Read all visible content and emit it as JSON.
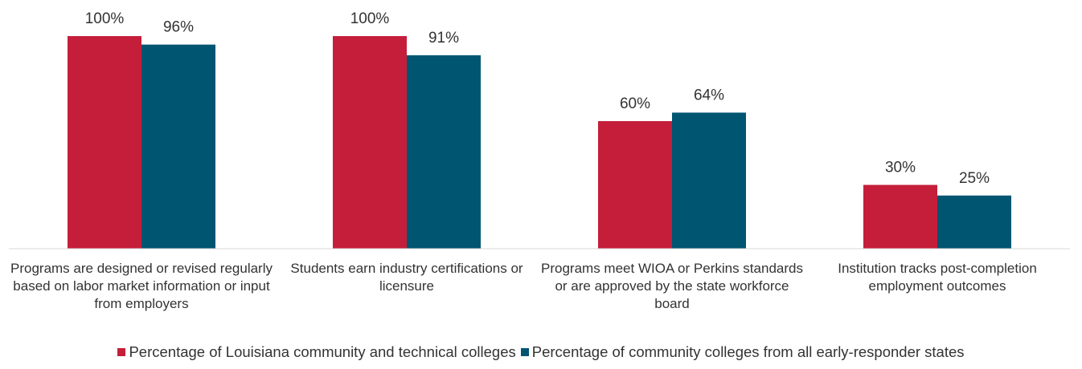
{
  "chart_data": {
    "type": "bar",
    "categories": [
      "Programs are designed or revised regularly based on labor market information or input from employers",
      "Students earn industry certifications or licensure",
      "Programs meet WIOA or Perkins standards or are approved by the state workforce board",
      "Institution tracks post-completion employment outcomes"
    ],
    "series": [
      {
        "name": "Percentage of Louisiana community and technical colleges",
        "color": "#c41e3a",
        "values": [
          100,
          100,
          60,
          30
        ],
        "value_labels": [
          "100%",
          "100%",
          "60%",
          "30%"
        ]
      },
      {
        "name": "Percentage of community colleges from all early-responder states",
        "color": "#005571",
        "values": [
          96,
          91,
          64,
          25
        ],
        "value_labels": [
          "96%",
          "91%",
          "64%",
          "25%"
        ]
      }
    ],
    "legend": "bottom"
  }
}
